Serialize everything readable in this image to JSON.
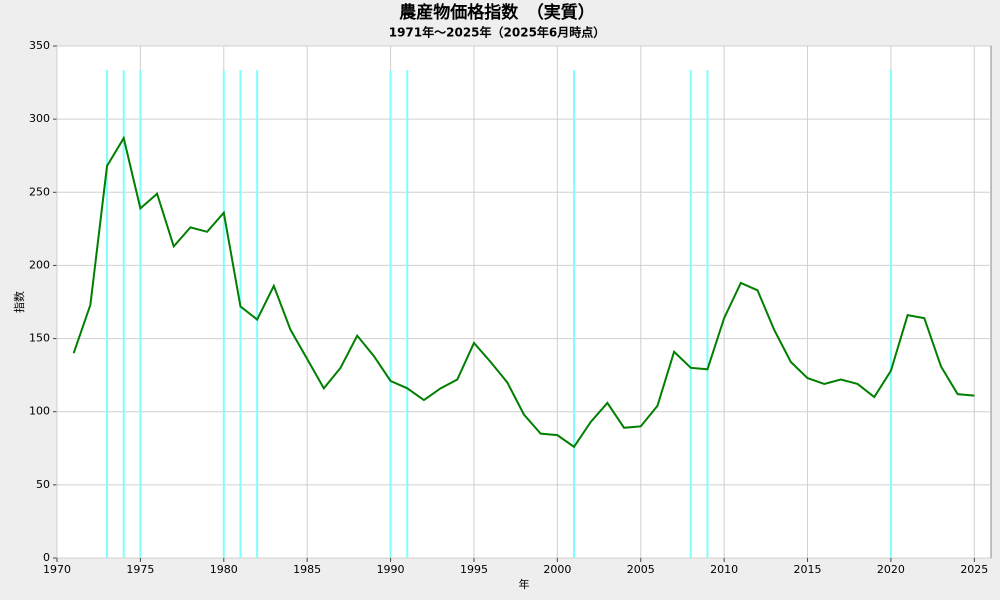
{
  "chart_data": {
    "type": "line",
    "title": "農産物価格指数　（実質）",
    "subtitle": "1971年～2025年（2025年6月時点）",
    "x_label": "年",
    "y_label": "指数",
    "x": [
      1971,
      1972,
      1973,
      1974,
      1975,
      1976,
      1977,
      1978,
      1979,
      1980,
      1981,
      1982,
      1983,
      1984,
      1985,
      1986,
      1987,
      1988,
      1989,
      1990,
      1991,
      1992,
      1993,
      1994,
      1995,
      1996,
      1997,
      1998,
      1999,
      2000,
      2001,
      2002,
      2003,
      2004,
      2005,
      2006,
      2007,
      2008,
      2009,
      2010,
      2011,
      2012,
      2013,
      2014,
      2015,
      2016,
      2017,
      2018,
      2019,
      2020,
      2021,
      2022,
      2023,
      2024,
      2025
    ],
    "series": [
      {
        "color": "#007f00",
        "values": [
          140,
          173,
          268,
          287,
          239,
          249,
          213,
          226,
          223,
          236,
          172,
          163,
          186,
          156,
          136,
          116,
          130,
          152,
          138,
          121,
          116,
          108,
          116,
          122,
          147,
          134,
          120,
          98,
          85,
          84,
          76,
          93,
          106,
          89,
          90,
          104,
          141,
          130,
          129,
          164,
          188,
          183,
          156,
          134,
          123,
          119,
          122,
          119,
          110,
          128,
          166,
          164,
          131,
          112,
          111
        ]
      }
    ],
    "markers": {
      "color": "#80ffff",
      "x": [
        1973,
        1974,
        1975,
        1980,
        1981,
        1982,
        1990,
        1991,
        2001,
        2008,
        2009,
        2020
      ]
    },
    "xlim": [
      1970,
      2026
    ],
    "xticks": [
      1970,
      1975,
      1980,
      1985,
      1990,
      1995,
      2000,
      2005,
      2010,
      2015,
      2020,
      2025
    ],
    "ylim": [
      0,
      350
    ],
    "yticks": [
      0,
      50,
      100,
      150,
      200,
      250,
      300,
      350
    ],
    "grid": true
  }
}
